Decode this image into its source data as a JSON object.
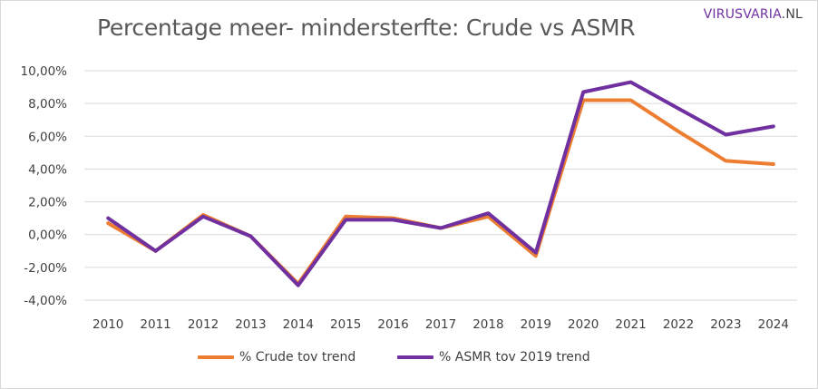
{
  "title": "Percentage meer- mindersterfte: Crude vs ASMR",
  "brand": {
    "main": "VIRUSVARIA",
    "suffix": ".NL",
    "color": "#7030a0"
  },
  "chart_data": {
    "type": "line",
    "title": "Percentage meer- mindersterfte: Crude vs ASMR",
    "xlabel": "",
    "ylabel": "",
    "categories": [
      "2010",
      "2011",
      "2012",
      "2013",
      "2014",
      "2015",
      "2016",
      "2017",
      "2018",
      "2019",
      "2020",
      "2021",
      "2022",
      "2023",
      "2024"
    ],
    "ylim": [
      -4,
      10
    ],
    "yticks": [
      {
        "value": -4,
        "label": "-4,00%"
      },
      {
        "value": -2,
        "label": "-2,00%"
      },
      {
        "value": 0,
        "label": "0,00%"
      },
      {
        "value": 2,
        "label": "2,00%"
      },
      {
        "value": 4,
        "label": "4,00%"
      },
      {
        "value": 6,
        "label": "6,00%"
      },
      {
        "value": 8,
        "label": "8,00%"
      },
      {
        "value": 10,
        "label": "10,00%"
      }
    ],
    "grid": true,
    "legend_position": "bottom",
    "series": [
      {
        "name": "% Crude tov trend",
        "color": "#ed7d31",
        "values": [
          0.7,
          -1.0,
          1.2,
          -0.1,
          -3.0,
          1.1,
          1.0,
          0.4,
          1.1,
          -1.3,
          8.2,
          8.2,
          6.3,
          4.5,
          4.3
        ]
      },
      {
        "name": "% ASMR tov 2019 trend",
        "color": "#7030a0",
        "values": [
          1.0,
          -1.0,
          1.1,
          -0.1,
          -3.1,
          0.9,
          0.9,
          0.4,
          1.3,
          -1.1,
          8.7,
          9.3,
          7.7,
          6.1,
          6.6
        ]
      }
    ]
  }
}
